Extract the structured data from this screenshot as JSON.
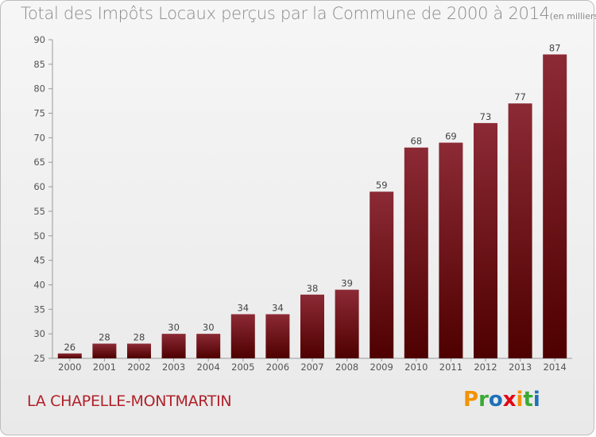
{
  "header": {
    "title": "Total des Impôts Locaux perçus par la Commune de 2000 à 2014",
    "subtitle": "(en milliers d'€)"
  },
  "footer": {
    "commune": "LA CHAPELLE-MONTMARTIN",
    "brand": "Proxiti"
  },
  "colors": {
    "bar_top": "#8c2a35",
    "bar_bottom": "#4e0000",
    "commune_text": "#b0212a"
  },
  "chart_data": {
    "type": "bar",
    "title": "Total des Impôts Locaux perçus par la Commune de 2000 à 2014",
    "subtitle": "(en milliers d'€)",
    "xlabel": "",
    "ylabel": "",
    "categories": [
      "2000",
      "2001",
      "2002",
      "2003",
      "2004",
      "2005",
      "2006",
      "2007",
      "2008",
      "2009",
      "2010",
      "2011",
      "2012",
      "2013",
      "2014"
    ],
    "values": [
      26,
      28,
      28,
      30,
      30,
      34,
      34,
      38,
      39,
      59,
      68,
      69,
      73,
      77,
      87
    ],
    "ylim": [
      25,
      90
    ],
    "yticks": [
      25,
      30,
      35,
      40,
      45,
      50,
      55,
      60,
      65,
      70,
      75,
      80,
      85,
      90
    ],
    "grid": false,
    "data_labels": true
  }
}
